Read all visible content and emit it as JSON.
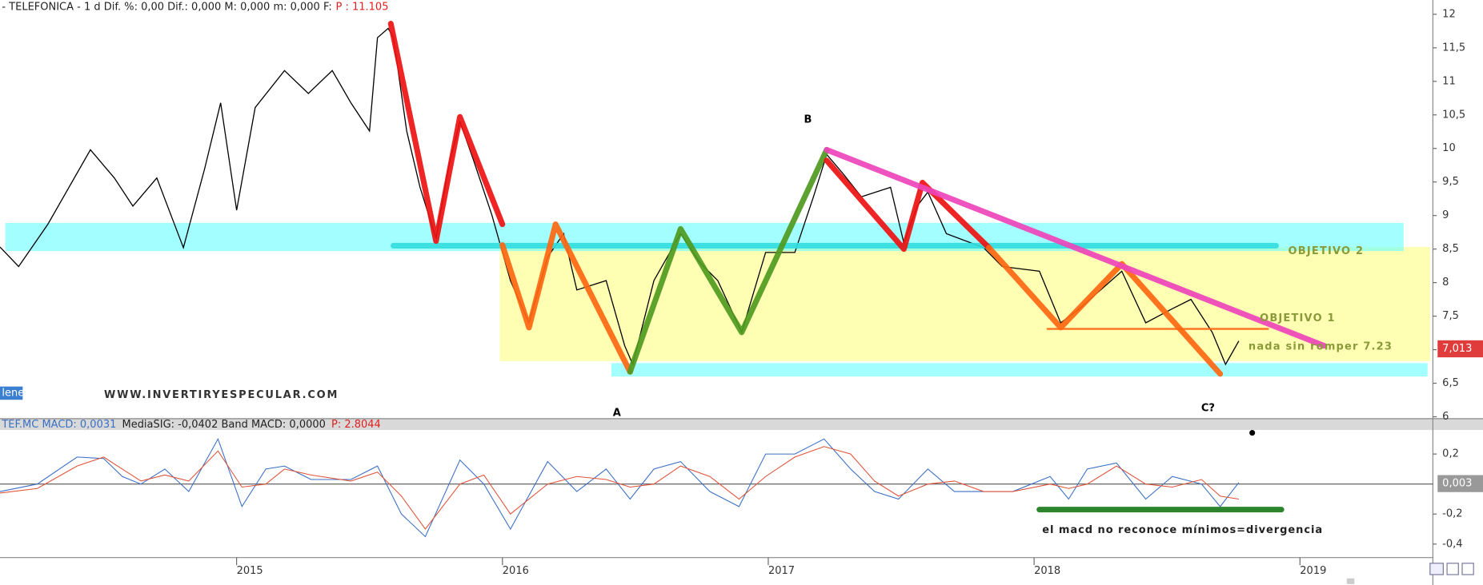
{
  "chart_data": [
    {
      "type": "line",
      "title": "- TELEFONICA -  1 d  Dif. %: 0,00  Dif.: 0,000  M: 0,000  m: 0,000  F:",
      "price_label": "P : 11.105",
      "x": [
        2014.11,
        2014.18,
        2014.29,
        2014.45,
        2014.54,
        2014.61,
        2014.7,
        2014.8,
        2014.88,
        2014.94,
        2015.0,
        2015.07,
        2015.18,
        2015.27,
        2015.36,
        2015.43,
        2015.5,
        2015.53,
        2015.57,
        2015.59,
        2015.64,
        2015.69,
        2015.75,
        2015.8,
        2015.84,
        2015.89,
        2015.96,
        2016.03,
        2016.1,
        2016.17,
        2016.23,
        2016.28,
        2016.39,
        2016.46,
        2016.49,
        2016.57,
        2016.67,
        2016.74,
        2016.81,
        2016.9,
        2016.99,
        2017.1,
        2017.17,
        2017.22,
        2017.28,
        2017.35,
        2017.46,
        2017.51,
        2017.56,
        2017.6,
        2017.67,
        2017.81,
        2017.88,
        2018.02,
        2018.1,
        2018.17,
        2018.33,
        2018.42,
        2018.52,
        2018.59,
        2018.67,
        2018.72,
        2018.77
      ],
      "values": [
        8.53,
        8.24,
        8.87,
        9.98,
        9.56,
        9.14,
        9.56,
        8.52,
        9.7,
        10.68,
        9.08,
        10.61,
        11.16,
        10.82,
        11.16,
        10.68,
        10.26,
        11.65,
        11.79,
        11.65,
        10.26,
        9.42,
        8.66,
        9.77,
        10.4,
        9.84,
        9.01,
        8.03,
        7.4,
        8.38,
        8.73,
        7.89,
        8.03,
        7.06,
        6.78,
        8.03,
        8.73,
        8.31,
        8.03,
        7.26,
        8.45,
        8.45,
        9.28,
        9.91,
        9.63,
        9.28,
        9.42,
        8.59,
        9.14,
        9.35,
        8.73,
        8.52,
        8.24,
        8.17,
        7.4,
        7.61,
        8.17,
        7.4,
        7.61,
        7.75,
        7.26,
        6.78,
        7.13
      ],
      "color": "#000000",
      "xlim": [
        2014.11,
        2019.5
      ],
      "ylim": [
        6,
        12.1
      ],
      "yticks": [
        6,
        {
          "value": 6.5,
          "label": "6,5"
        },
        7,
        {
          "value": 7.5,
          "label": "7,5"
        },
        8,
        {
          "value": 8.5,
          "label": "8,5"
        },
        9,
        {
          "value": 9.5,
          "label": "9,5"
        },
        10,
        {
          "value": 10.5,
          "label": "10,5"
        },
        11,
        {
          "value": 11.5,
          "label": "11,5"
        },
        12
      ],
      "last_value": 7.013,
      "last_value_label": "7,013",
      "zones": [
        {
          "color": "#ffff99",
          "xlim": [
            2015.99,
            2019.49
          ],
          "ylim": [
            6.83,
            8.53
          ]
        },
        {
          "color": "#66ffff",
          "xlim": [
            2014.13,
            2019.39
          ],
          "ylim": [
            8.47,
            8.89
          ]
        },
        {
          "color": "#66ffff",
          "xlim": [
            2016.41,
            2019.48
          ],
          "ylim": [
            6.6,
            6.8
          ]
        }
      ],
      "drawn_lines": [
        {
          "color": "#33dddd",
          "x": [
            2015.59,
            2018.91
          ],
          "y": [
            8.55,
            8.55
          ]
        },
        {
          "color": "#ee1111",
          "x": [
            2015.58,
            2015.75,
            2015.84,
            2016.0
          ],
          "y": [
            11.86,
            8.62,
            10.47,
            8.87
          ]
        },
        {
          "color": "#ff6611",
          "x": [
            2016.0,
            2016.1,
            2016.2,
            2016.48
          ],
          "y": [
            8.56,
            7.33,
            8.87,
            6.67
          ]
        },
        {
          "color": "#4f9a1f",
          "x": [
            2016.48,
            2016.67,
            2016.9,
            2017.22
          ],
          "y": [
            6.67,
            8.8,
            7.26,
            9.98
          ]
        },
        {
          "color": "#ee1111",
          "x": [
            2017.22,
            2017.51,
            2017.58,
            2017.83
          ],
          "y": [
            9.82,
            8.5,
            9.49,
            8.52
          ]
        },
        {
          "color": "#ff6611",
          "x": [
            2017.83,
            2018.1,
            2018.33,
            2018.7
          ],
          "y": [
            8.52,
            7.33,
            8.28,
            6.64
          ]
        },
        {
          "color": "#ff6611",
          "x": [
            2018.05,
            2018.88
          ],
          "y": [
            7.31,
            7.31
          ]
        },
        {
          "color": "#ee44bb",
          "x": [
            2017.22,
            2019.09
          ],
          "y": [
            9.98,
            7.06
          ]
        }
      ],
      "annotations": [
        "B",
        "A",
        "C?",
        "OBJETIVO 2",
        "OBJETIVO 1",
        "nada sin romper 7.23",
        "WWW.INVERTIRYESPECULAR.COM",
        "lenes"
      ]
    },
    {
      "type": "line",
      "title": "TEF.MC MACD: 0,0031",
      "subtitle": "MediaSIG: -0,0402  Band MACD: 0,0000",
      "price_label": "P: 2.8044",
      "x": [
        2014.11,
        2014.25,
        2014.4,
        2014.5,
        2014.57,
        2014.64,
        2014.73,
        2014.82,
        2014.93,
        2015.02,
        2015.11,
        2015.18,
        2015.28,
        2015.43,
        2015.53,
        2015.62,
        2015.71,
        2015.84,
        2015.93,
        2016.03,
        2016.17,
        2016.28,
        2016.39,
        2016.48,
        2016.57,
        2016.67,
        2016.78,
        2016.89,
        2016.99,
        2017.1,
        2017.21,
        2017.31,
        2017.4,
        2017.49,
        2017.6,
        2017.7,
        2017.81,
        2017.92,
        2018.06,
        2018.13,
        2018.2,
        2018.31,
        2018.42,
        2018.52,
        2018.63,
        2018.7,
        2018.77
      ],
      "series": [
        {
          "color": "#3a6fc4",
          "values": [
            -0.05,
            0.0,
            0.18,
            0.17,
            0.05,
            0.0,
            0.1,
            -0.05,
            0.3,
            -0.15,
            0.1,
            0.12,
            0.03,
            0.03,
            0.12,
            -0.2,
            -0.35,
            0.16,
            0.0,
            -0.3,
            0.15,
            -0.05,
            0.1,
            -0.1,
            0.1,
            0.15,
            -0.05,
            -0.15,
            0.2,
            0.2,
            0.3,
            0.1,
            -0.05,
            -0.1,
            0.1,
            -0.05,
            -0.05,
            -0.05,
            0.05,
            -0.1,
            0.1,
            0.14,
            -0.1,
            0.05,
            0.0,
            -0.15,
            0.01
          ]
        },
        {
          "color": "#e0533a",
          "values": [
            -0.06,
            -0.03,
            0.12,
            0.18,
            0.1,
            0.02,
            0.06,
            0.02,
            0.22,
            -0.02,
            0.0,
            0.1,
            0.06,
            0.02,
            0.08,
            -0.08,
            -0.3,
            0.0,
            0.06,
            -0.2,
            0.0,
            0.05,
            0.03,
            -0.02,
            0.0,
            0.12,
            0.05,
            -0.1,
            0.05,
            0.18,
            0.25,
            0.2,
            0.02,
            -0.08,
            0.0,
            0.02,
            -0.05,
            -0.05,
            0.0,
            -0.03,
            0.0,
            0.12,
            0.0,
            -0.02,
            0.03,
            -0.08,
            -0.1
          ]
        }
      ],
      "xlim": [
        2014.11,
        2019.5
      ],
      "xticks": [
        2015,
        2016,
        2017,
        2018,
        2019
      ],
      "ylim": [
        -0.49,
        0.36
      ],
      "yticks": [
        {
          "value": 0.2,
          "label": "0,2"
        },
        {
          "value": -0.2,
          "label": "-0,2"
        },
        {
          "value": -0.4,
          "label": "-0,4"
        }
      ],
      "zero_line": 0,
      "last_value": 0.003,
      "last_value_label": "0,003",
      "drawn_lines": [
        {
          "color": "#1a7a1a",
          "x": [
            2018.02,
            2018.93
          ],
          "y": [
            -0.17,
            -0.17
          ]
        }
      ],
      "annotations": [
        "el macd no reconoce mínimos=divergencia"
      ]
    }
  ]
}
